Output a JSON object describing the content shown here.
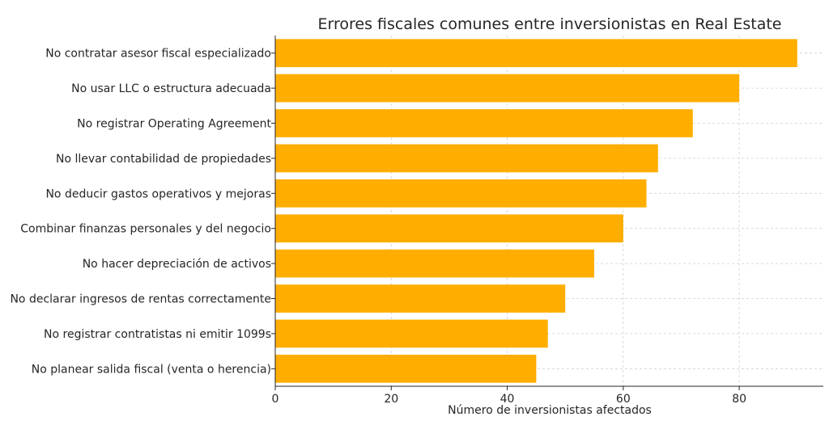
{
  "chart_data": {
    "type": "bar",
    "orientation": "horizontal",
    "title": "Errores fiscales comunes entre inversionistas en Real Estate",
    "xlabel": "Número de inversionistas afectados",
    "ylabel": "",
    "categories": [
      "No contratar asesor fiscal especializado",
      "No usar LLC o estructura adecuada",
      "No registrar Operating Agreement",
      "No llevar contabilidad de propiedades",
      "No deducir gastos operativos y mejoras",
      "Combinar finanzas personales y del negocio",
      "No hacer depreciación de activos",
      "No declarar ingresos de rentas correctamente",
      "No registrar contratistas ni emitir 1099s",
      "No planear salida fiscal (venta o herencia)"
    ],
    "values": [
      90,
      80,
      72,
      66,
      64,
      60,
      55,
      50,
      47,
      45
    ],
    "xlim": [
      0,
      94.5
    ],
    "xticks": [
      "0",
      "20",
      "40",
      "60",
      "80"
    ],
    "xtick_values": [
      0,
      20,
      40,
      60,
      80
    ],
    "grid": true,
    "bar_color": "#FFAE00",
    "grid_color": "#cfcfcf"
  }
}
